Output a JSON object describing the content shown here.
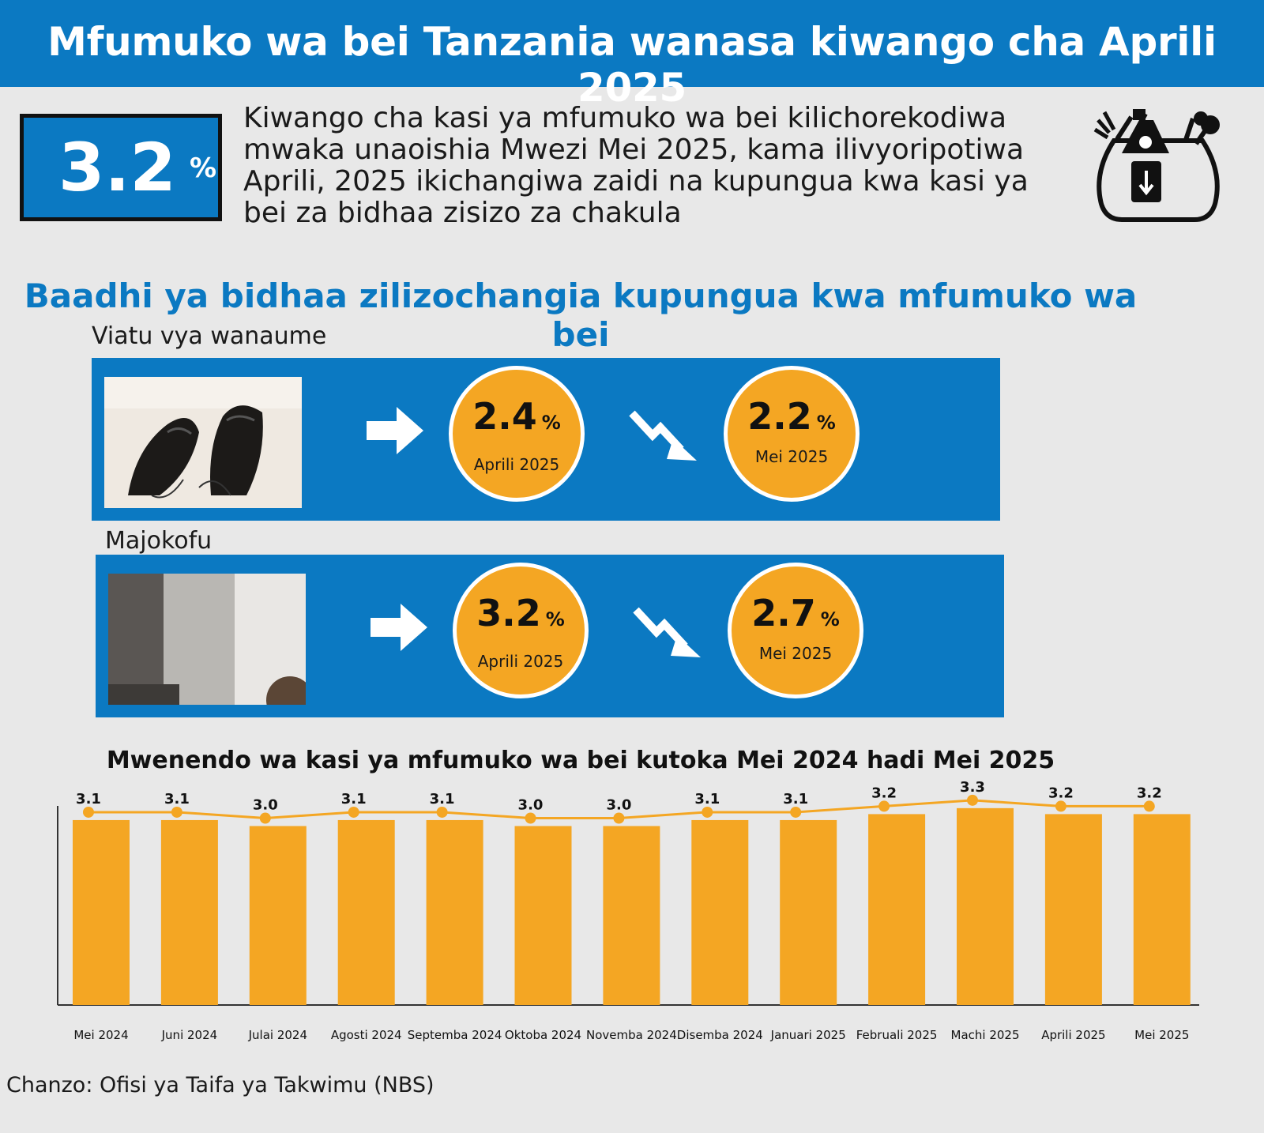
{
  "header": {
    "title": "Mfumuko wa bei Tanzania wanasa kiwango cha Aprili 2025"
  },
  "highlight": {
    "value": "3.2",
    "unit": "%"
  },
  "intro_text": "Kiwango cha kasi ya mfumuko wa bei kilichorekodiwa mwaka unaoishia Mwezi Mei 2025, kama ilivyoripotiwa Aprili, 2025 ikichangiwa zaidi na kupungua kwa kasi ya bei za bidhaa zisizo za chakula",
  "section": {
    "title": "Baadhi ya bidhaa zilizochangia kupungua kwa mfumuko wa bei"
  },
  "items": [
    {
      "label": "Viatu vya wanaume",
      "before_value": "2.4",
      "before_unit": "%",
      "before_date": "Aprili 2025",
      "after_value": "2.2",
      "after_unit": "%",
      "after_date": "Mei 2025"
    },
    {
      "label": "Majokofu",
      "before_value": "3.2",
      "before_unit": "%",
      "before_date": "Aprili 2025",
      "after_value": "2.7",
      "after_unit": "%",
      "after_date": "Mei 2025"
    }
  ],
  "chart_data": {
    "type": "bar",
    "title": "Mwenendo wa kasi ya mfumuko wa bei kutoka Mei 2024 hadi Mei 2025",
    "categories": [
      "Mei 2024",
      "Juni 2024",
      "Julai 2024",
      "Agosti 2024",
      "Septemba 2024",
      "Oktoba 2024",
      "Novemba 2024",
      "Disemba 2024",
      "Januari 2025",
      "Februali 2025",
      "Machi 2025",
      "Aprili 2025",
      "Mei 2025"
    ],
    "values": [
      3.1,
      3.1,
      3.0,
      3.1,
      3.1,
      3.0,
      3.0,
      3.1,
      3.1,
      3.2,
      3.3,
      3.2,
      3.2
    ],
    "value_labels": [
      "3.1",
      "3.1",
      "3.0",
      "3.1",
      "3.1",
      "3.0",
      "3.0",
      "3.1",
      "3.1",
      "3.2",
      "3.3",
      "3.2",
      "3.2"
    ],
    "overlay": "line",
    "bar_color": "#f4a623",
    "line_color": "#f4a623",
    "grid": false
  },
  "source": "Chanzo: Ofisi ya Taifa ya Takwimu (NBS)",
  "colors": {
    "brand": "#0b79c2",
    "accent": "#f4a623",
    "background": "#e8e8e8"
  }
}
